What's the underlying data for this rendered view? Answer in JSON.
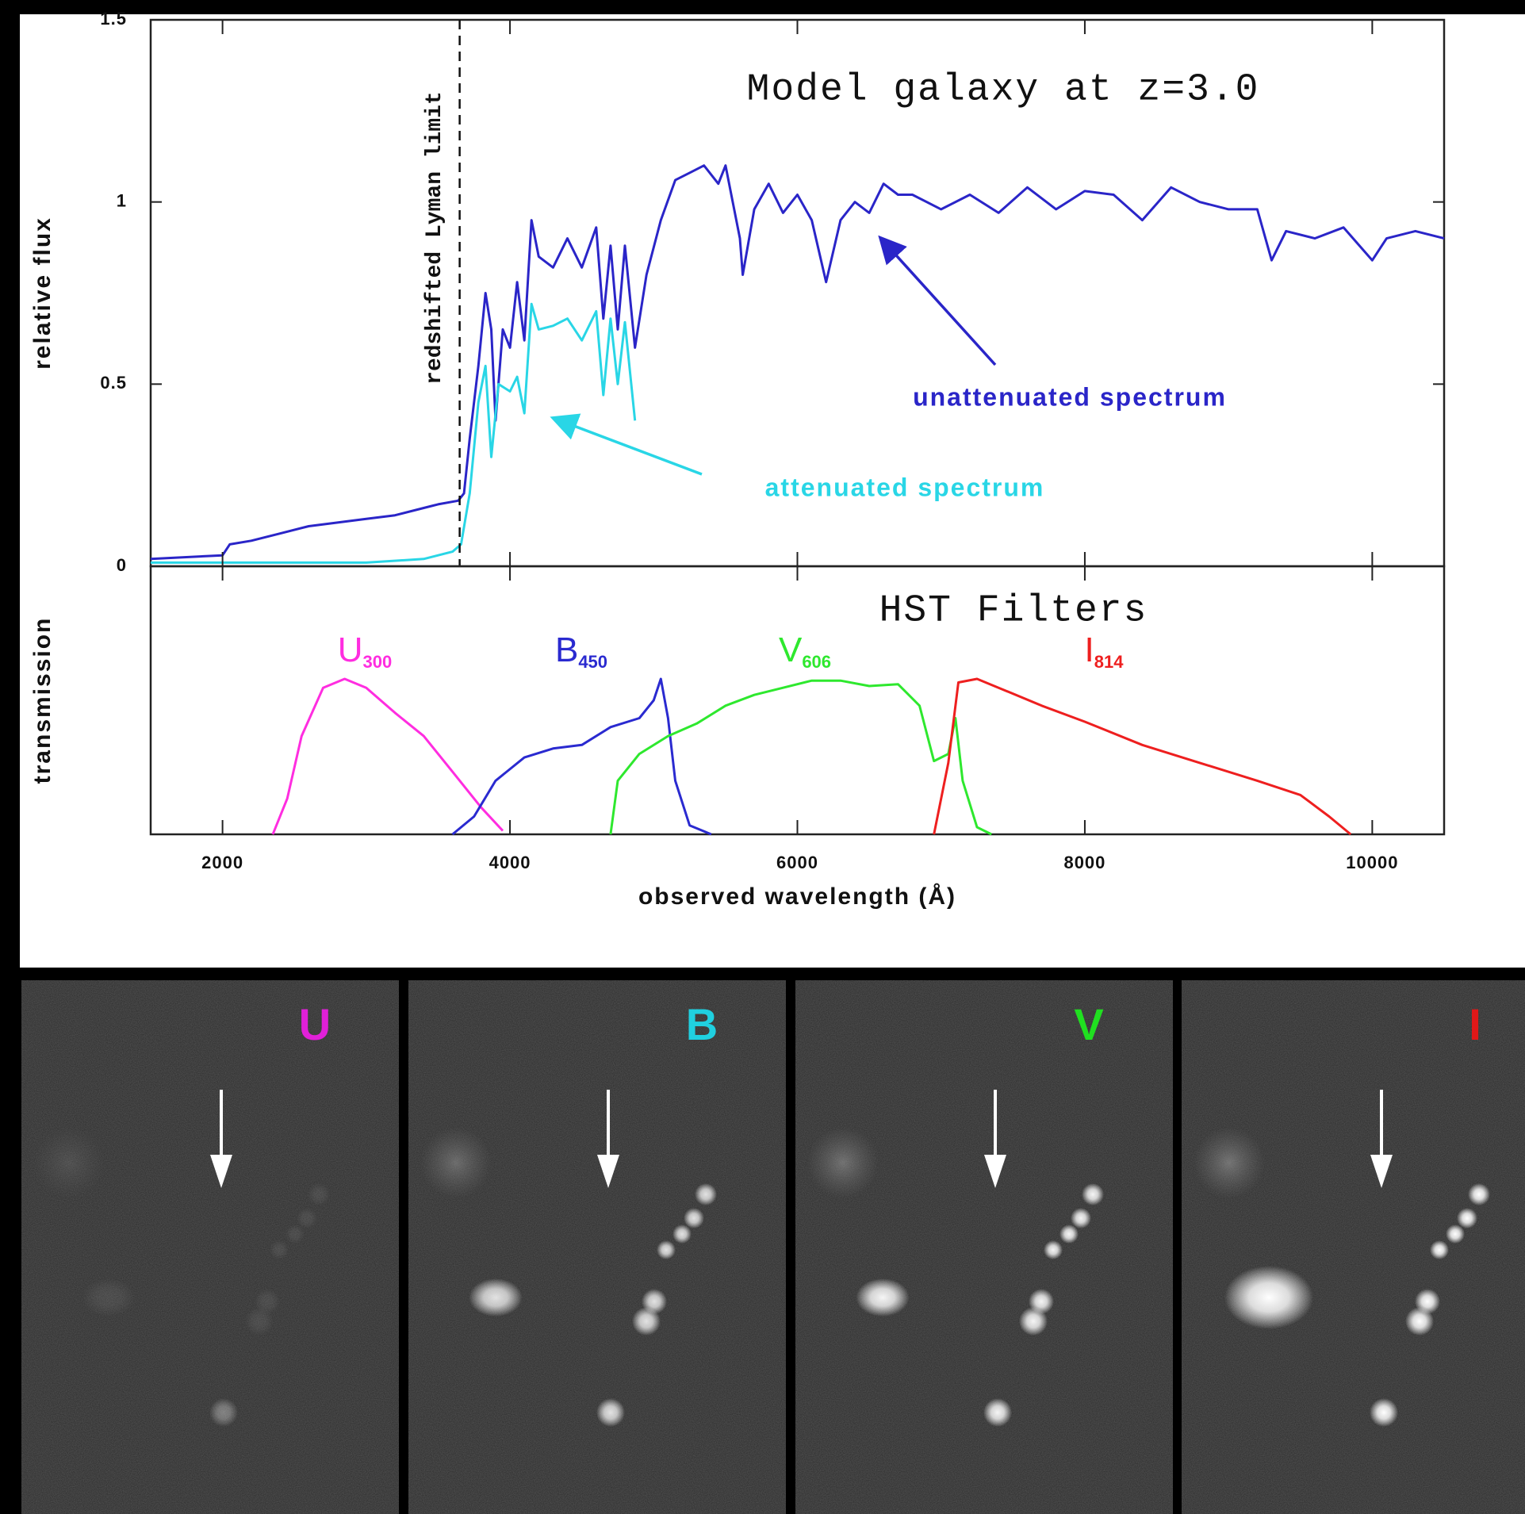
{
  "chart_data": [
    {
      "type": "line",
      "title": "Model galaxy at z=3.0",
      "ylabel": "relative flux",
      "xlim": [
        1500,
        10500
      ],
      "ylim": [
        0,
        1.5
      ],
      "yticks": [
        0,
        0.5,
        1,
        1.5
      ],
      "vline": {
        "x": 3650,
        "label": "redshifted Lyman limit"
      },
      "series": [
        {
          "name": "unattenuated spectrum",
          "color": "#2a25c8",
          "x": [
            1500,
            2000,
            2050,
            2200,
            2400,
            2600,
            2800,
            3000,
            3200,
            3400,
            3500,
            3640,
            3680,
            3720,
            3780,
            3830,
            3870,
            3900,
            3950,
            4000,
            4050,
            4100,
            4150,
            4200,
            4300,
            4400,
            4500,
            4600,
            4650,
            4700,
            4750,
            4800,
            4870,
            4950,
            5050,
            5150,
            5250,
            5350,
            5450,
            5500,
            5600,
            5620,
            5700,
            5800,
            5900,
            6000,
            6100,
            6200,
            6300,
            6400,
            6500,
            6600,
            6700,
            6800,
            7000,
            7200,
            7400,
            7600,
            7800,
            8000,
            8200,
            8400,
            8600,
            8800,
            9000,
            9200,
            9300,
            9400,
            9600,
            9800,
            10000,
            10100,
            10300,
            10500
          ],
          "values": [
            0.02,
            0.03,
            0.06,
            0.07,
            0.09,
            0.11,
            0.12,
            0.13,
            0.14,
            0.16,
            0.17,
            0.18,
            0.2,
            0.35,
            0.55,
            0.75,
            0.65,
            0.4,
            0.65,
            0.6,
            0.78,
            0.62,
            0.95,
            0.85,
            0.82,
            0.9,
            0.82,
            0.93,
            0.68,
            0.88,
            0.65,
            0.88,
            0.6,
            0.8,
            0.95,
            1.06,
            1.08,
            1.1,
            1.05,
            1.1,
            0.9,
            0.8,
            0.98,
            1.05,
            0.97,
            1.02,
            0.95,
            0.78,
            0.95,
            1.0,
            0.97,
            1.05,
            1.02,
            1.02,
            0.98,
            1.02,
            0.97,
            1.04,
            0.98,
            1.03,
            1.02,
            0.95,
            1.04,
            1.0,
            0.98,
            0.98,
            0.84,
            0.92,
            0.9,
            0.93,
            0.84,
            0.9,
            0.92,
            0.9
          ]
        },
        {
          "name": "attenuated spectrum",
          "color": "#29d6e6",
          "x": [
            1500,
            2000,
            3000,
            3400,
            3600,
            3660,
            3720,
            3780,
            3830,
            3870,
            3920,
            4000,
            4050,
            4100,
            4150,
            4200,
            4300,
            4400,
            4500,
            4600,
            4650,
            4700,
            4750,
            4800,
            4870
          ],
          "values": [
            0.01,
            0.01,
            0.01,
            0.02,
            0.04,
            0.06,
            0.2,
            0.45,
            0.55,
            0.3,
            0.5,
            0.48,
            0.52,
            0.42,
            0.72,
            0.65,
            0.66,
            0.68,
            0.62,
            0.7,
            0.47,
            0.68,
            0.5,
            0.67,
            0.4
          ]
        }
      ]
    },
    {
      "type": "line",
      "title": "HST Filters",
      "ylabel": "transmission",
      "xlabel": "observed wavelength (Å)",
      "xlim": [
        1500,
        10500
      ],
      "ylim": [
        0,
        1.5
      ],
      "xticks": [
        2000,
        4000,
        6000,
        8000,
        10000
      ],
      "series": [
        {
          "name": "U",
          "subscript": "300",
          "color": "#ff2de0",
          "x": [
            2350,
            2450,
            2550,
            2700,
            2850,
            3000,
            3200,
            3400,
            3600,
            3800,
            3950
          ],
          "values": [
            0,
            0.2,
            0.55,
            0.82,
            0.87,
            0.82,
            0.68,
            0.55,
            0.35,
            0.15,
            0.02
          ]
        },
        {
          "name": "B",
          "subscript": "450",
          "color": "#2a2ad0",
          "x": [
            3600,
            3750,
            3900,
            4100,
            4300,
            4500,
            4700,
            4900,
            5000,
            5050,
            5100,
            5150,
            5250,
            5400
          ],
          "values": [
            0,
            0.1,
            0.3,
            0.43,
            0.48,
            0.5,
            0.6,
            0.65,
            0.75,
            0.87,
            0.65,
            0.3,
            0.05,
            0
          ]
        },
        {
          "name": "V",
          "subscript": "606",
          "color": "#2ee82e",
          "x": [
            4700,
            4750,
            4900,
            5100,
            5300,
            5500,
            5700,
            5900,
            6100,
            6300,
            6500,
            6700,
            6850,
            6950,
            7050,
            7100,
            7150,
            7250,
            7350
          ],
          "values": [
            0,
            0.3,
            0.45,
            0.55,
            0.62,
            0.72,
            0.78,
            0.82,
            0.86,
            0.86,
            0.83,
            0.84,
            0.72,
            0.41,
            0.45,
            0.65,
            0.3,
            0.04,
            0
          ]
        },
        {
          "name": "I",
          "subscript": "814",
          "color": "#ee1f1f",
          "x": [
            6950,
            7050,
            7120,
            7250,
            7400,
            7700,
            8000,
            8400,
            8800,
            9200,
            9500,
            9700,
            9850
          ],
          "values": [
            0,
            0.4,
            0.85,
            0.87,
            0.82,
            0.72,
            0.63,
            0.5,
            0.4,
            0.3,
            0.22,
            0.1,
            0
          ]
        }
      ]
    }
  ],
  "panels": [
    {
      "label": "U",
      "color": "#e020d8"
    },
    {
      "label": "B",
      "color": "#20d0e0"
    },
    {
      "label": "V",
      "color": "#20e020"
    },
    {
      "label": "I",
      "color": "#e01818"
    }
  ]
}
